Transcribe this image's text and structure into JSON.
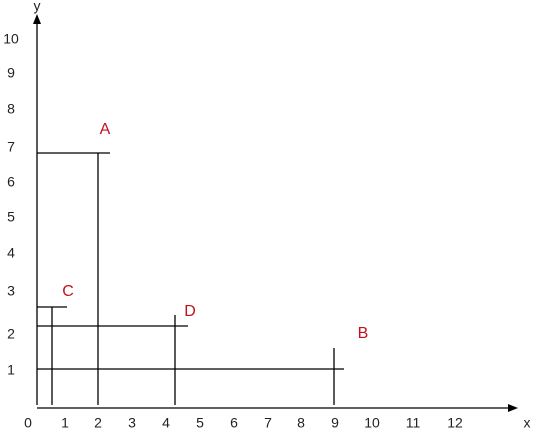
{
  "axes": {
    "x_label": "x",
    "y_label": "y",
    "x_ticks": [
      "0",
      "1",
      "2",
      "3",
      "4",
      "5",
      "6",
      "7",
      "8",
      "9",
      "10",
      "11",
      "12"
    ],
    "y_ticks": [
      "1",
      "2",
      "3",
      "4",
      "5",
      "6",
      "7",
      "8",
      "9",
      "10"
    ]
  },
  "points": [
    {
      "label": "A"
    },
    {
      "label": "B"
    },
    {
      "label": "C"
    },
    {
      "label": "D"
    }
  ]
}
